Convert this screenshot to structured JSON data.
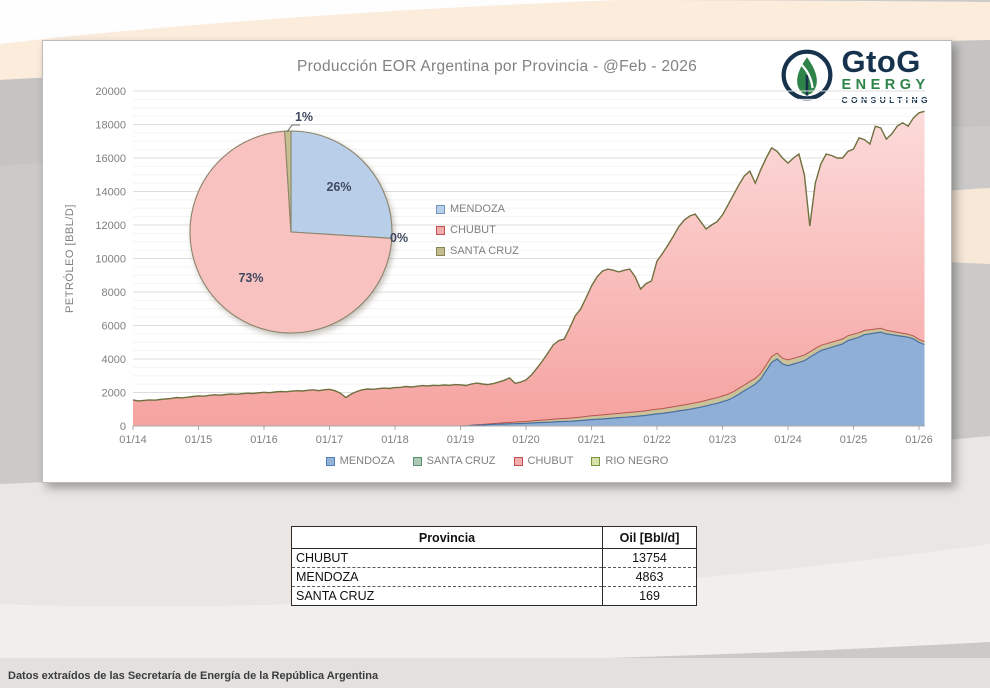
{
  "card": {
    "title": "Producción EOR Argentina por Provincia - @Feb - 2026"
  },
  "logo": {
    "name": "GtoG",
    "line2": "ENERGY",
    "line3": "CONSULTING"
  },
  "chart_data": [
    {
      "type": "area",
      "variant": "stacked",
      "title": "Producción EOR Argentina por Provincia - @Feb - 2026",
      "xlabel": "",
      "ylabel": "PETRÓLEO [BBL/D]",
      "ylim": [
        0,
        20000
      ],
      "ytick_interval": 2000,
      "ytick_labels": [
        "0",
        "2000",
        "4000",
        "6000",
        "8000",
        "10000",
        "12000",
        "14000",
        "16000",
        "18000",
        "20000"
      ],
      "xtick_labels": [
        "01/14",
        "01/15",
        "01/16",
        "01/17",
        "01/18",
        "01/19",
        "01/20",
        "01/21",
        "01/22",
        "01/23",
        "01/24",
        "01/25",
        "01/26"
      ],
      "x_start": "01/2014",
      "x_end": "02/2026",
      "points_per_series": 146,
      "grid": "on",
      "legend_position": "bottom",
      "legend": [
        "MENDOZA",
        "SANTA CRUZ",
        "CHUBUT",
        "RIO NEGRO"
      ],
      "series": [
        {
          "name": "MENDOZA",
          "values": [
            0,
            0,
            0,
            0,
            0,
            0,
            0,
            0,
            0,
            0,
            0,
            0,
            0,
            0,
            0,
            0,
            0,
            0,
            0,
            0,
            0,
            0,
            0,
            0,
            0,
            0,
            0,
            0,
            0,
            0,
            0,
            0,
            0,
            0,
            0,
            0,
            0,
            0,
            0,
            0,
            0,
            0,
            0,
            0,
            0,
            0,
            0,
            0,
            0,
            0,
            0,
            0,
            0,
            0,
            0,
            0,
            0,
            0,
            0,
            0,
            0,
            0,
            30,
            50,
            60,
            80,
            100,
            110,
            120,
            130,
            140,
            150,
            160,
            180,
            200,
            210,
            220,
            240,
            260,
            270,
            280,
            300,
            320,
            350,
            380,
            400,
            420,
            450,
            470,
            500,
            520,
            550,
            570,
            600,
            630,
            680,
            720,
            750,
            800,
            850,
            900,
            950,
            1000,
            1060,
            1120,
            1200,
            1280,
            1350,
            1450,
            1550,
            1700,
            1900,
            2100,
            2300,
            2500,
            2800,
            3300,
            3800,
            4000,
            3700,
            3600,
            3700,
            3800,
            3900,
            4100,
            4300,
            4500,
            4600,
            4700,
            4800,
            4900,
            5100,
            5200,
            5300,
            5450,
            5500,
            5550,
            5600,
            5500,
            5450,
            5400,
            5350,
            5300,
            5200,
            5000,
            4863
          ]
        },
        {
          "name": "SANTA CRUZ",
          "values": [
            0,
            0,
            0,
            0,
            0,
            0,
            0,
            0,
            0,
            0,
            0,
            0,
            0,
            0,
            0,
            0,
            0,
            0,
            0,
            0,
            0,
            0,
            0,
            0,
            0,
            0,
            0,
            0,
            0,
            0,
            0,
            0,
            0,
            0,
            0,
            0,
            0,
            0,
            0,
            0,
            0,
            0,
            0,
            0,
            0,
            0,
            0,
            0,
            0,
            0,
            0,
            0,
            0,
            0,
            0,
            0,
            0,
            0,
            0,
            0,
            0,
            0,
            10,
            20,
            30,
            40,
            50,
            60,
            70,
            80,
            90,
            100,
            110,
            120,
            130,
            140,
            150,
            160,
            170,
            180,
            190,
            200,
            210,
            220,
            230,
            230,
            240,
            240,
            250,
            250,
            260,
            260,
            270,
            270,
            280,
            280,
            290,
            290,
            300,
            300,
            310,
            310,
            320,
            320,
            330,
            330,
            340,
            340,
            350,
            350,
            350,
            350,
            350,
            350,
            350,
            350,
            350,
            350,
            350,
            350,
            350,
            340,
            340,
            330,
            330,
            320,
            320,
            310,
            310,
            300,
            300,
            290,
            280,
            270,
            260,
            250,
            240,
            230,
            220,
            210,
            200,
            190,
            180,
            175,
            170,
            169
          ]
        },
        {
          "name": "CHUBUT",
          "values": [
            1550,
            1500,
            1530,
            1560,
            1540,
            1580,
            1620,
            1650,
            1700,
            1680,
            1720,
            1760,
            1800,
            1780,
            1830,
            1860,
            1840,
            1880,
            1910,
            1890,
            1930,
            1960,
            1940,
            1980,
            2010,
            1990,
            2030,
            2060,
            2040,
            2080,
            2110,
            2090,
            2130,
            2160,
            2110,
            2160,
            2190,
            2110,
            1960,
            1700,
            1910,
            2060,
            2160,
            2210,
            2190,
            2230,
            2260,
            2240,
            2290,
            2310,
            2360,
            2330,
            2370,
            2410,
            2390,
            2430,
            2410,
            2450,
            2430,
            2470,
            2460,
            2420,
            2470,
            2490,
            2420,
            2350,
            2380,
            2450,
            2540,
            2660,
            2320,
            2370,
            2480,
            2750,
            3120,
            3530,
            3980,
            4450,
            4670,
            4740,
            5380,
            6070,
            6450,
            7070,
            7750,
            8270,
            8590,
            8680,
            8580,
            8450,
            8520,
            8560,
            8060,
            7310,
            7590,
            7700,
            8840,
            9260,
            9700,
            10190,
            10690,
            11040,
            11220,
            11270,
            10750,
            10230,
            10380,
            10510,
            10800,
            11300,
            11750,
            12150,
            12475,
            12570,
            11650,
            12150,
            12350,
            12450,
            12050,
            11950,
            11750,
            11960,
            12090,
            10770,
            7510,
            9880,
            10820,
            11320,
            11140,
            10900,
            10800,
            11010,
            11050,
            11630,
            11390,
            11080,
            12110,
            11970,
            11410,
            11770,
            12300,
            12560,
            12420,
            13025,
            13530,
            13754
          ]
        },
        {
          "name": "RIO NEGRO",
          "constant": 0
        }
      ]
    },
    {
      "type": "pie",
      "slices": [
        {
          "name": "MENDOZA",
          "pct": 26,
          "label": "26%"
        },
        {
          "name": "RIO NEGRO",
          "pct": 0,
          "label": "0%"
        },
        {
          "name": "CHUBUT",
          "pct": 73,
          "label": "73%"
        },
        {
          "name": "SANTA CRUZ",
          "pct": 1,
          "label": "1%"
        }
      ],
      "legend": [
        "MENDOZA",
        "CHUBUT",
        "SANTA CRUZ"
      ],
      "legend_position": "right"
    }
  ],
  "table": {
    "headers": [
      "Provincia",
      "Oil [Bbl/d]"
    ],
    "rows": [
      {
        "province": "CHUBUT",
        "oil": "13754"
      },
      {
        "province": "MENDOZA",
        "oil": "4863"
      },
      {
        "province": "SANTA CRUZ",
        "oil": "169"
      }
    ]
  },
  "footer": {
    "source_note": "Datos extraídos de las Secretaría de Energía de la República Argentina"
  },
  "colors": {
    "chart": {
      "mendoza_fill": "#8fafd6",
      "mendoza_line": "#4a6f9f",
      "santa_cruz_fill": "#c9c29a",
      "santa_cruz_line": "#a09a68",
      "chubut_fill_bottom": "#f5a3a0",
      "chubut_fill_top": "#fcdfde",
      "chubut_line": "#bb5250",
      "rio_negro_line": "#70703f",
      "grid_major": "#dedede",
      "grid_minor": "#f4f4f4",
      "axis": "#a8a8a8",
      "tick_text": "#7f7f7f"
    },
    "pie": {
      "mendoza": "#b9cfe9",
      "chubut": "#f8c2c0",
      "santa_cruz": "#c5bf8f",
      "rio_negro": "#d7e4bd",
      "border": "#8c8469",
      "label": "#3f4a61"
    },
    "area_legend": {
      "mendoza": {
        "bg": "#95b3d7",
        "bd": "#4f81bd"
      },
      "santa_cruz": {
        "bg": "#aec9b4",
        "bd": "#5d8f72"
      },
      "chubut": {
        "bg": "#f2aeac",
        "bd": "#c0504d"
      },
      "rio_negro": {
        "bg": "#d6e0a8",
        "bd": "#77933c"
      }
    },
    "pie_legend": {
      "mendoza": {
        "bg": "#b9cfe9",
        "bd": "#6f94bf"
      },
      "chubut": {
        "bg": "#f2aeac",
        "bd": "#c0504d"
      },
      "santa_cruz": {
        "bg": "#c2bd8c",
        "bd": "#8a8455"
      }
    },
    "logo": {
      "navy": "#16324c",
      "green": "#2e8448"
    }
  }
}
